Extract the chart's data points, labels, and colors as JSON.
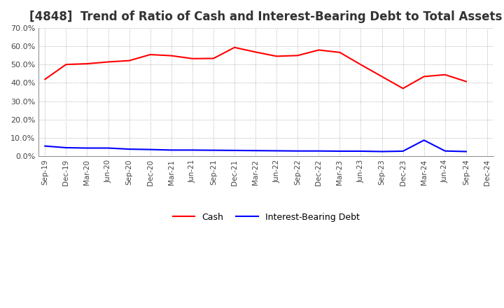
{
  "title": "[4848]  Trend of Ratio of Cash and Interest-Bearing Debt to Total Assets",
  "x_labels": [
    "Sep-19",
    "Dec-19",
    "Mar-20",
    "Jun-20",
    "Sep-20",
    "Dec-20",
    "Mar-21",
    "Jun-21",
    "Sep-21",
    "Dec-21",
    "Mar-22",
    "Jun-22",
    "Sep-22",
    "Dec-22",
    "Mar-23",
    "Jun-23",
    "Sep-23",
    "Dec-23",
    "Mar-24",
    "Jun-24",
    "Sep-24",
    "Dec-24"
  ],
  "cash": [
    0.42,
    0.501,
    0.505,
    0.515,
    0.522,
    0.555,
    0.549,
    0.533,
    0.534,
    0.594,
    0.569,
    0.546,
    0.55,
    0.58,
    0.567,
    0.5,
    0.435,
    0.37,
    0.435,
    0.445,
    0.408,
    null
  ],
  "interest_bearing_debt": [
    0.055,
    0.046,
    0.044,
    0.044,
    0.038,
    0.036,
    0.033,
    0.033,
    0.032,
    0.031,
    0.03,
    0.029,
    0.028,
    0.028,
    0.027,
    0.027,
    0.025,
    0.027,
    0.087,
    0.028,
    0.025,
    null
  ],
  "cash_color": "#ff0000",
  "ibd_color": "#0000ff",
  "ylim": [
    0.0,
    0.7
  ],
  "yticks": [
    0.0,
    0.1,
    0.2,
    0.3,
    0.4,
    0.5,
    0.6,
    0.7
  ],
  "background_color": "#ffffff",
  "grid_color": "#aaaaaa",
  "legend_cash": "Cash",
  "legend_ibd": "Interest-Bearing Debt",
  "title_fontsize": 12
}
